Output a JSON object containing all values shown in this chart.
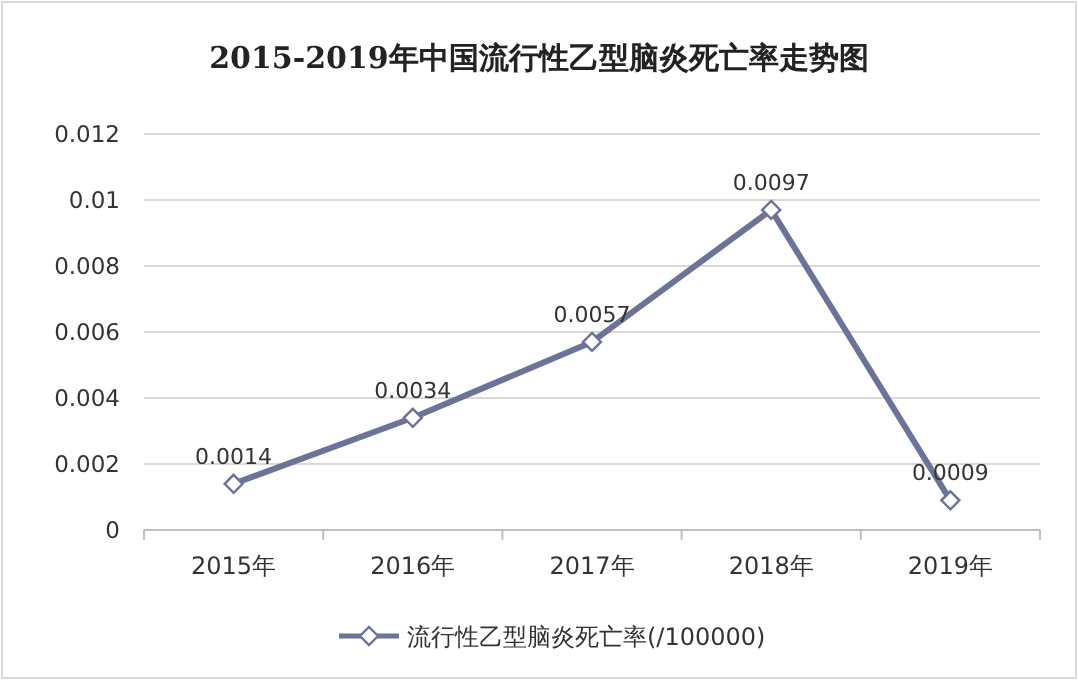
{
  "chart_data": {
    "type": "line",
    "title": "2015-2019年中国流行性乙型脑炎死亡率走势图",
    "categories": [
      "2015年",
      "2016年",
      "2017年",
      "2018年",
      "2019年"
    ],
    "series": [
      {
        "name": "流行性乙型脑炎死亡率(/100000)",
        "color": "#6b7399",
        "values": [
          0.0014,
          0.0034,
          0.0057,
          0.0097,
          0.0009
        ]
      }
    ],
    "ylim": [
      0,
      0.012
    ],
    "yticks": [
      0,
      0.002,
      0.004,
      0.006,
      0.008,
      0.01,
      0.012
    ],
    "grid": "y",
    "legend": "bottom",
    "marker": "diamond",
    "line_style": "solid",
    "data_labels": true
  }
}
